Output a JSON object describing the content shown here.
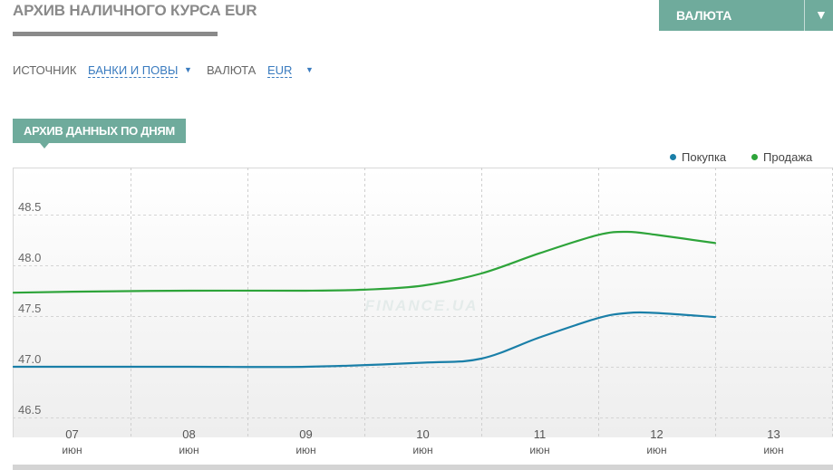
{
  "page": {
    "title": "Архив наличного курса EUR",
    "currency_button": "ВАЛЮТА",
    "dropdown_arrow": "▼"
  },
  "filters": {
    "source_label": "ИСТОЧНИК",
    "source_value": "БАНКИ И ПОВЫ",
    "currency_label": "ВАЛЮТА",
    "currency_value": "EUR",
    "arrow": "▼"
  },
  "tab": {
    "label": "АРХИВ ДАННЫХ ПО ДНЯМ"
  },
  "watermark": "FINANCE.UA",
  "colors": {
    "accent": "#6fab9c",
    "buy": "#1a7fa8",
    "sell": "#2ea43a"
  },
  "chart_data": {
    "type": "line",
    "x_ticks": [
      {
        "day": "07",
        "month": "июн"
      },
      {
        "day": "08",
        "month": "июн"
      },
      {
        "day": "09",
        "month": "июн"
      },
      {
        "day": "10",
        "month": "июн"
      },
      {
        "day": "11",
        "month": "июн"
      },
      {
        "day": "12",
        "month": "июн"
      },
      {
        "day": "13",
        "month": "июн"
      }
    ],
    "y_ticks": [
      "48.5",
      "48.0",
      "47.5",
      "47.0",
      "46.5"
    ],
    "ylim": [
      46.5,
      48.5
    ],
    "grid": true,
    "legend_position": "top-right",
    "series": [
      {
        "name": "Покупка",
        "color": "#1a7fa8",
        "points": [
          [
            6.5,
            47.0
          ],
          [
            7.0,
            47.0
          ],
          [
            8.0,
            47.0
          ],
          [
            9.0,
            47.0
          ],
          [
            10.0,
            47.04
          ],
          [
            10.5,
            47.08
          ],
          [
            11.0,
            47.29
          ],
          [
            11.5,
            47.48
          ],
          [
            11.75,
            47.53
          ],
          [
            12.0,
            47.53
          ],
          [
            12.5,
            47.49
          ]
        ]
      },
      {
        "name": "Продажа",
        "color": "#2ea43a",
        "points": [
          [
            6.5,
            47.73
          ],
          [
            7.0,
            47.74
          ],
          [
            8.0,
            47.75
          ],
          [
            9.0,
            47.75
          ],
          [
            9.5,
            47.76
          ],
          [
            10.0,
            47.8
          ],
          [
            10.5,
            47.92
          ],
          [
            11.0,
            48.12
          ],
          [
            11.5,
            48.3
          ],
          [
            11.75,
            48.33
          ],
          [
            12.0,
            48.3
          ],
          [
            12.5,
            48.22
          ]
        ]
      }
    ]
  }
}
